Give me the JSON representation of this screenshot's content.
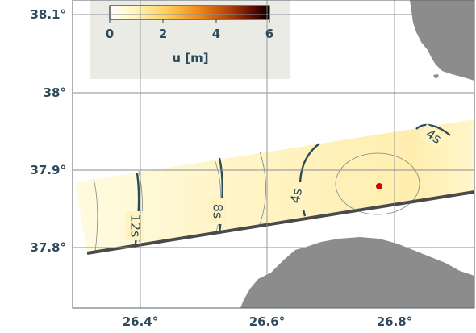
{
  "map": {
    "x_ticks": [
      "26.4°",
      "26.6°",
      "26.8°"
    ],
    "y_ticks": [
      "38.1°",
      "38°",
      "37.9°",
      "37.8°"
    ],
    "land_color": "#8c8c8c",
    "sea_color": "#ffffff",
    "grid_color": "#8a8f94",
    "epicenter_color": "#d40000",
    "fault_trace_color": "#4a4a4a"
  },
  "colorbar": {
    "ticks": [
      "0",
      "2",
      "4",
      "6"
    ],
    "label": "u [m]",
    "range": [
      0,
      6
    ],
    "colormap": "afmhot_r"
  },
  "contours": {
    "labels": [
      "4s",
      "4s",
      "8s",
      "12s"
    ]
  }
}
